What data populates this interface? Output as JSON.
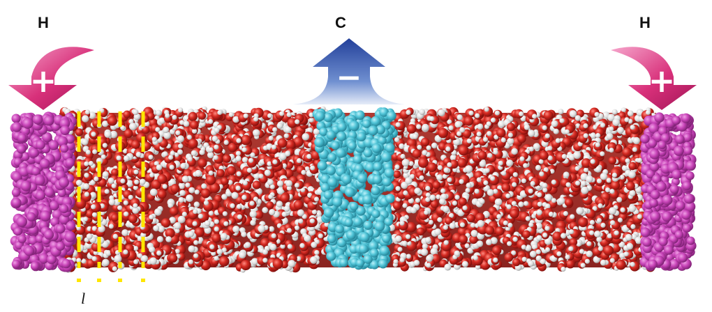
{
  "labels": {
    "hot_left": "H",
    "cold_center": "C",
    "hot_right": "H",
    "layer_index": "l"
  },
  "signs": {
    "plus": "+",
    "minus": "−"
  },
  "colors": {
    "hot_arrow": "#d8307a",
    "cold_arrow": "#2d4fa8",
    "heat_source": "#c844b8",
    "heat_sink": "#4fc3d6",
    "oxygen": "#d42a22",
    "hydrogen": "#e8e8e8",
    "layer_marker": "#ffe600"
  }
}
